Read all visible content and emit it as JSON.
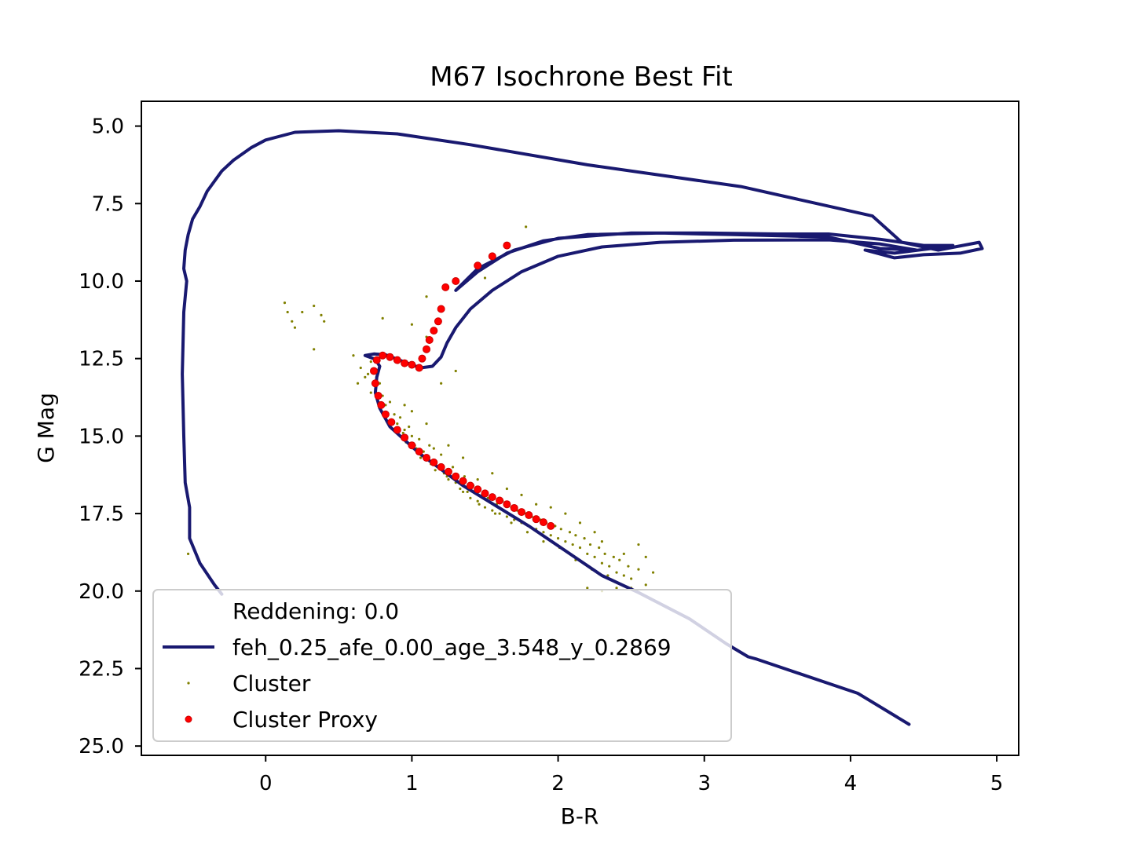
{
  "chart_data": {
    "type": "scatter",
    "title": "M67 Isochrone Best Fit",
    "xlabel": "B-R",
    "ylabel": "G Mag",
    "xlim": [
      -0.85,
      5.15
    ],
    "ylim": [
      25.3,
      4.2
    ],
    "y_inverted": true,
    "xticks": [
      "0",
      "1",
      "2",
      "3",
      "4",
      "5"
    ],
    "yticks": [
      "5.0",
      "7.5",
      "10.0",
      "12.5",
      "15.0",
      "17.5",
      "20.0",
      "22.5",
      "25.0"
    ],
    "grid": false,
    "legend_position": "lower-left",
    "legend": {
      "reddening": "Reddening: 0.0",
      "isochrone": "feh_0.25_afe_0.00_age_3.548_y_0.2869",
      "cluster": "Cluster",
      "proxy": "Cluster Proxy"
    },
    "colors": {
      "isochrone": "#191970",
      "cluster": "#808000",
      "proxy": "#ff0000"
    },
    "series": [
      {
        "name": "feh_0.25_afe_0.00_age_3.548_y_0.2869",
        "kind": "line",
        "points": [
          [
            4.4,
            24.3
          ],
          [
            4.05,
            23.3
          ],
          [
            3.36,
            22.2
          ],
          [
            3.3,
            22.12
          ],
          [
            3.15,
            21.7
          ],
          [
            2.9,
            20.9
          ],
          [
            2.55,
            20.05
          ],
          [
            2.3,
            19.5
          ],
          [
            1.8,
            17.9
          ],
          [
            1.35,
            16.6
          ],
          [
            1.05,
            15.55
          ],
          [
            0.85,
            14.7
          ],
          [
            0.78,
            14.1
          ],
          [
            0.75,
            13.6
          ],
          [
            0.76,
            13.1
          ],
          [
            0.78,
            12.75
          ],
          [
            0.75,
            12.52
          ],
          [
            0.68,
            12.4
          ],
          [
            0.74,
            12.35
          ],
          [
            0.82,
            12.38
          ],
          [
            0.9,
            12.52
          ],
          [
            1.0,
            12.7
          ],
          [
            1.06,
            12.8
          ],
          [
            1.14,
            12.75
          ],
          [
            1.2,
            12.45
          ],
          [
            1.24,
            12.0
          ],
          [
            1.3,
            11.5
          ],
          [
            1.4,
            10.9
          ],
          [
            1.55,
            10.3
          ],
          [
            1.75,
            9.7
          ],
          [
            2.0,
            9.2
          ],
          [
            2.3,
            8.9
          ],
          [
            2.7,
            8.75
          ],
          [
            3.2,
            8.68
          ],
          [
            3.85,
            8.67
          ],
          [
            4.2,
            8.8
          ],
          [
            4.45,
            9.0
          ],
          [
            4.2,
            8.95
          ],
          [
            3.85,
            8.58
          ],
          [
            3.2,
            8.5
          ],
          [
            2.7,
            8.45
          ],
          [
            2.2,
            8.5
          ],
          [
            1.9,
            8.7
          ],
          [
            1.65,
            9.1
          ],
          [
            1.45,
            9.7
          ],
          [
            1.3,
            10.3
          ],
          [
            1.45,
            9.6
          ],
          [
            1.7,
            9.0
          ],
          [
            2.0,
            8.62
          ],
          [
            2.5,
            8.45
          ],
          [
            3.0,
            8.45
          ],
          [
            3.5,
            8.48
          ],
          [
            3.85,
            8.48
          ],
          [
            4.2,
            8.65
          ],
          [
            4.5,
            8.85
          ],
          [
            4.7,
            8.85
          ],
          [
            4.55,
            8.95
          ],
          [
            4.3,
            9.1
          ],
          [
            4.1,
            9.0
          ],
          [
            4.3,
            9.25
          ],
          [
            4.5,
            9.15
          ],
          [
            4.75,
            9.1
          ],
          [
            4.9,
            8.95
          ],
          [
            4.88,
            8.75
          ],
          [
            4.6,
            9.0
          ],
          [
            4.35,
            8.75
          ],
          [
            4.15,
            7.9
          ],
          [
            3.25,
            6.95
          ],
          [
            2.2,
            6.25
          ],
          [
            1.4,
            5.6
          ],
          [
            0.9,
            5.25
          ],
          [
            0.5,
            5.15
          ],
          [
            0.2,
            5.2
          ],
          [
            0.0,
            5.45
          ],
          [
            -0.1,
            5.7
          ],
          [
            -0.22,
            6.1
          ],
          [
            -0.3,
            6.45
          ],
          [
            -0.4,
            7.1
          ],
          [
            -0.45,
            7.6
          ],
          [
            -0.5,
            8.0
          ],
          [
            -0.53,
            8.5
          ],
          [
            -0.55,
            9.0
          ],
          [
            -0.56,
            9.6
          ],
          [
            -0.54,
            10.0
          ],
          [
            -0.56,
            11.0
          ],
          [
            -0.57,
            13.0
          ],
          [
            -0.56,
            15.0
          ],
          [
            -0.55,
            16.5
          ],
          [
            -0.52,
            17.3
          ],
          [
            -0.52,
            18.3
          ],
          [
            -0.45,
            19.1
          ],
          [
            -0.35,
            19.8
          ],
          [
            -0.3,
            20.1
          ]
        ]
      },
      {
        "name": "Cluster",
        "kind": "scatter",
        "points": [
          [
            0.13,
            10.7
          ],
          [
            0.15,
            11.0
          ],
          [
            0.18,
            11.3
          ],
          [
            0.25,
            11.0
          ],
          [
            0.33,
            10.8
          ],
          [
            0.38,
            11.1
          ],
          [
            0.4,
            11.3
          ],
          [
            0.33,
            12.2
          ],
          [
            0.2,
            11.5
          ],
          [
            1.78,
            8.25
          ],
          [
            1.45,
            9.5
          ],
          [
            1.5,
            9.9
          ],
          [
            1.1,
            10.5
          ],
          [
            1.0,
            11.4
          ],
          [
            0.8,
            11.2
          ],
          [
            1.1,
            11.8
          ],
          [
            1.3,
            12.9
          ],
          [
            1.2,
            13.3
          ],
          [
            -0.53,
            18.8
          ],
          [
            0.6,
            12.4
          ],
          [
            0.65,
            12.8
          ],
          [
            0.63,
            13.3
          ],
          [
            0.7,
            13.0
          ],
          [
            0.72,
            13.6
          ],
          [
            0.76,
            12.9
          ],
          [
            0.78,
            13.3
          ],
          [
            0.8,
            13.7
          ],
          [
            0.82,
            14.0
          ],
          [
            0.85,
            13.9
          ],
          [
            0.88,
            14.3
          ],
          [
            0.9,
            14.6
          ],
          [
            0.92,
            14.4
          ],
          [
            0.95,
            14.8
          ],
          [
            0.98,
            14.7
          ],
          [
            1.0,
            15.0
          ],
          [
            1.02,
            15.3
          ],
          [
            1.05,
            15.1
          ],
          [
            1.08,
            15.5
          ],
          [
            1.1,
            15.7
          ],
          [
            1.12,
            15.3
          ],
          [
            1.15,
            15.8
          ],
          [
            1.18,
            16.0
          ],
          [
            1.2,
            15.6
          ],
          [
            1.22,
            16.2
          ],
          [
            1.25,
            16.4
          ],
          [
            1.28,
            16.0
          ],
          [
            1.3,
            16.5
          ],
          [
            1.33,
            16.7
          ],
          [
            1.36,
            16.3
          ],
          [
            1.38,
            16.8
          ],
          [
            1.4,
            17.0
          ],
          [
            1.42,
            16.6
          ],
          [
            1.45,
            17.1
          ],
          [
            1.48,
            16.9
          ],
          [
            1.5,
            17.3
          ],
          [
            1.52,
            17.0
          ],
          [
            1.55,
            17.4
          ],
          [
            1.58,
            17.2
          ],
          [
            1.6,
            17.5
          ],
          [
            1.62,
            17.1
          ],
          [
            1.65,
            17.6
          ],
          [
            1.68,
            17.3
          ],
          [
            1.7,
            17.7
          ],
          [
            1.72,
            17.4
          ],
          [
            1.75,
            17.8
          ],
          [
            1.78,
            17.5
          ],
          [
            1.8,
            17.9
          ],
          [
            1.82,
            17.6
          ],
          [
            1.85,
            18.0
          ],
          [
            1.88,
            17.7
          ],
          [
            1.9,
            18.1
          ],
          [
            1.92,
            17.8
          ],
          [
            1.95,
            18.2
          ],
          [
            1.98,
            17.9
          ],
          [
            2.0,
            18.3
          ],
          [
            2.02,
            18.0
          ],
          [
            2.05,
            18.4
          ],
          [
            2.08,
            18.1
          ],
          [
            2.1,
            18.5
          ],
          [
            2.12,
            18.2
          ],
          [
            2.15,
            18.6
          ],
          [
            2.18,
            18.3
          ],
          [
            2.2,
            18.8
          ],
          [
            2.22,
            18.5
          ],
          [
            2.25,
            18.9
          ],
          [
            2.28,
            18.6
          ],
          [
            2.3,
            19.1
          ],
          [
            2.32,
            18.8
          ],
          [
            2.35,
            19.2
          ],
          [
            2.38,
            18.9
          ],
          [
            2.4,
            19.4
          ],
          [
            2.42,
            19.0
          ],
          [
            2.45,
            19.5
          ],
          [
            2.48,
            19.2
          ],
          [
            2.5,
            19.6
          ],
          [
            2.55,
            19.3
          ],
          [
            2.6,
            19.8
          ],
          [
            2.65,
            19.4
          ],
          [
            2.2,
            19.9
          ],
          [
            2.3,
            20.0
          ],
          [
            2.4,
            19.9
          ],
          [
            2.5,
            19.9
          ],
          [
            0.72,
            12.6
          ],
          [
            0.74,
            12.9
          ],
          [
            0.68,
            13.1
          ],
          [
            0.86,
            14.5
          ],
          [
            0.94,
            14.9
          ],
          [
            1.03,
            15.4
          ],
          [
            1.13,
            15.9
          ],
          [
            1.24,
            16.3
          ],
          [
            1.35,
            16.8
          ],
          [
            1.46,
            17.2
          ],
          [
            1.57,
            17.5
          ],
          [
            1.68,
            17.8
          ],
          [
            1.79,
            18.1
          ],
          [
            1.9,
            18.4
          ],
          [
            2.01,
            18.6
          ],
          [
            2.12,
            19.0
          ],
          [
            2.23,
            19.3
          ],
          [
            2.34,
            19.5
          ],
          [
            1.25,
            15.3
          ],
          [
            1.35,
            15.7
          ],
          [
            1.55,
            16.2
          ],
          [
            1.75,
            16.9
          ],
          [
            1.95,
            17.3
          ],
          [
            2.15,
            17.8
          ],
          [
            2.3,
            18.4
          ],
          [
            2.45,
            18.8
          ],
          [
            2.55,
            18.5
          ],
          [
            2.6,
            18.9
          ],
          [
            1.15,
            15.4
          ],
          [
            1.45,
            16.4
          ],
          [
            1.65,
            16.7
          ],
          [
            1.85,
            17.2
          ],
          [
            2.05,
            17.5
          ],
          [
            2.25,
            18.1
          ],
          [
            0.96,
            15.2
          ],
          [
            1.06,
            15.7
          ],
          [
            1.16,
            16.1
          ],
          [
            1.0,
            14.2
          ],
          [
            1.1,
            14.6
          ],
          [
            0.95,
            14.0
          ]
        ]
      },
      {
        "name": "Cluster Proxy",
        "kind": "scatter",
        "points": [
          [
            1.65,
            8.85
          ],
          [
            1.55,
            9.2
          ],
          [
            1.45,
            9.5
          ],
          [
            1.3,
            10.0
          ],
          [
            1.23,
            10.2
          ],
          [
            1.2,
            10.9
          ],
          [
            1.18,
            11.3
          ],
          [
            1.15,
            11.6
          ],
          [
            1.12,
            11.9
          ],
          [
            1.1,
            12.2
          ],
          [
            1.07,
            12.5
          ],
          [
            1.05,
            12.8
          ],
          [
            1.0,
            12.7
          ],
          [
            0.95,
            12.65
          ],
          [
            0.9,
            12.55
          ],
          [
            0.85,
            12.45
          ],
          [
            0.8,
            12.4
          ],
          [
            0.76,
            12.55
          ],
          [
            0.74,
            12.9
          ],
          [
            0.75,
            13.3
          ],
          [
            0.77,
            13.7
          ],
          [
            0.79,
            14.0
          ],
          [
            0.82,
            14.3
          ],
          [
            0.86,
            14.55
          ],
          [
            0.9,
            14.8
          ],
          [
            0.95,
            15.05
          ],
          [
            1.0,
            15.3
          ],
          [
            1.05,
            15.5
          ],
          [
            1.1,
            15.7
          ],
          [
            1.15,
            15.85
          ],
          [
            1.2,
            16.0
          ],
          [
            1.25,
            16.15
          ],
          [
            1.3,
            16.3
          ],
          [
            1.35,
            16.45
          ],
          [
            1.4,
            16.6
          ],
          [
            1.45,
            16.72
          ],
          [
            1.5,
            16.85
          ],
          [
            1.55,
            16.97
          ],
          [
            1.6,
            17.08
          ],
          [
            1.65,
            17.2
          ],
          [
            1.7,
            17.32
          ],
          [
            1.75,
            17.45
          ],
          [
            1.8,
            17.55
          ],
          [
            1.85,
            17.68
          ],
          [
            1.9,
            17.78
          ],
          [
            1.95,
            17.9
          ]
        ]
      }
    ]
  }
}
